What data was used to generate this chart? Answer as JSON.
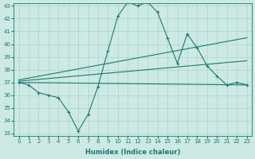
{
  "xlabel": "Humidex (Indice chaleur)",
  "ylabel": "",
  "ylim": [
    33,
    43
  ],
  "xlim": [
    -0.5,
    23.5
  ],
  "yticks": [
    33,
    34,
    35,
    36,
    37,
    38,
    39,
    40,
    41,
    42,
    43
  ],
  "xticks": [
    0,
    1,
    2,
    3,
    4,
    5,
    6,
    7,
    8,
    9,
    10,
    11,
    12,
    13,
    14,
    15,
    16,
    17,
    18,
    19,
    20,
    21,
    22,
    23
  ],
  "bg_color": "#cce9e4",
  "line_color": "#1e7a6e",
  "grid_color": "#a8d5cc",
  "line1_x": [
    0,
    1,
    2,
    3,
    4,
    5,
    6,
    7,
    8,
    9,
    10,
    11,
    12,
    13,
    14,
    15,
    16,
    17,
    18,
    19,
    20,
    21,
    22,
    23
  ],
  "line1_y": [
    37.0,
    36.8,
    36.2,
    36.0,
    35.8,
    34.7,
    33.2,
    34.5,
    36.7,
    39.5,
    42.2,
    43.3,
    43.0,
    43.3,
    42.5,
    40.5,
    38.5,
    40.8,
    39.7,
    38.3,
    37.5,
    36.8,
    37.0,
    36.8
  ],
  "line2_x": [
    0,
    23
  ],
  "line2_y": [
    37.0,
    36.8
  ],
  "line3_x": [
    0,
    23
  ],
  "line3_y": [
    37.1,
    38.7
  ],
  "line4_x": [
    0,
    23
  ],
  "line4_y": [
    37.2,
    40.5
  ]
}
